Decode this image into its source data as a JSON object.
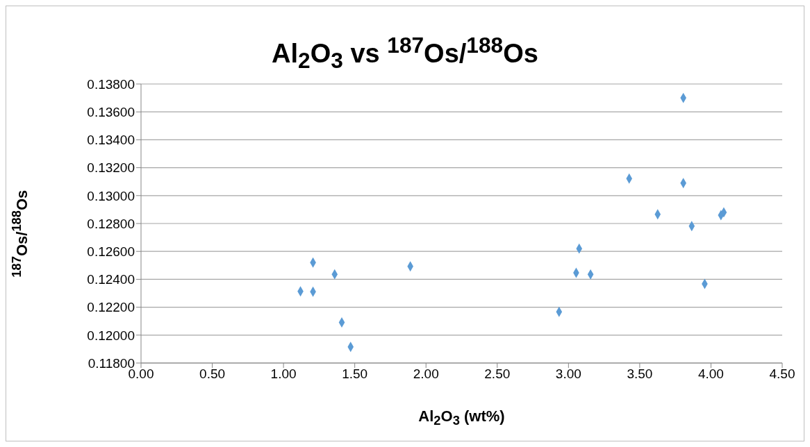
{
  "chart_data": {
    "type": "scatter",
    "title": "Al$_{2}$O$_{3}$ vs $^{187}$Os/$^{188}$Os",
    "xlabel": "Al$_{2}$O$_{3}$ (wt%)",
    "ylabel": "$^{187}$Os/$^{188}$Os",
    "x": [
      1.119,
      1.207,
      1.207,
      1.359,
      1.409,
      1.471,
      1.89,
      2.934,
      3.054,
      3.075,
      3.155,
      3.426,
      3.626,
      3.806,
      3.806,
      3.865,
      3.956,
      4.07,
      4.09
    ],
    "series": [
      {
        "color": "#5b9bd5",
        "values": [
          0.12314,
          0.1252,
          0.12311,
          0.12436,
          0.12091,
          0.11916,
          0.12493,
          0.12167,
          0.12447,
          0.1262,
          0.12435,
          0.13122,
          0.12866,
          0.137,
          0.1309,
          0.12781,
          0.12367,
          0.1286,
          0.1288
        ]
      }
    ],
    "xlim": [
      0,
      4.5
    ],
    "xticks": [
      {
        "value": 0,
        "label": "0.00"
      },
      {
        "value": 0.5,
        "label": "0.50"
      },
      {
        "value": 1,
        "label": "1.00"
      },
      {
        "value": 1.5,
        "label": "1.50"
      },
      {
        "value": 2,
        "label": "2.00"
      },
      {
        "value": 2.5,
        "label": "2.50"
      },
      {
        "value": 3,
        "label": "3.00"
      },
      {
        "value": 3.5,
        "label": "3.50"
      },
      {
        "value": 4,
        "label": "4.00"
      },
      {
        "value": 4.5,
        "label": "4.50"
      }
    ],
    "ylim": [
      0.118,
      0.138
    ],
    "yticks": [
      {
        "value": 0.118,
        "label": "0.11800"
      },
      {
        "value": 0.12,
        "label": "0.12000"
      },
      {
        "value": 0.122,
        "label": "0.12200"
      },
      {
        "value": 0.124,
        "label": "0.12400"
      },
      {
        "value": 0.126,
        "label": "0.12600"
      },
      {
        "value": 0.128,
        "label": "0.12800"
      },
      {
        "value": 0.13,
        "label": "0.13000"
      },
      {
        "value": 0.132,
        "label": "0.13200"
      },
      {
        "value": 0.134,
        "label": "0.13400"
      },
      {
        "value": 0.136,
        "label": "0.13600"
      },
      {
        "value": 0.138,
        "label": "0.13800"
      }
    ],
    "grid": "y",
    "marker": "diamond"
  }
}
